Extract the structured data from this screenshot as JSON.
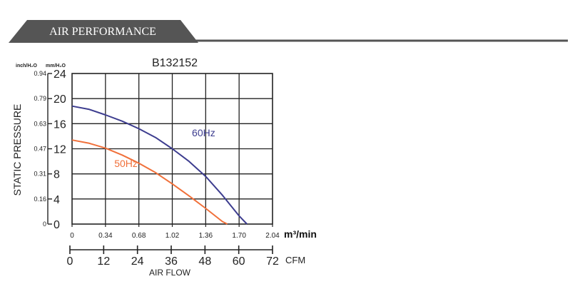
{
  "header": {
    "title": "AIR PERFORMANCE"
  },
  "colors": {
    "header_bg": "#555555",
    "header_line": "#555555",
    "curve_60hz": "#3d3d8f",
    "curve_50hz": "#f0703a",
    "grid": "#222222"
  },
  "chart_data": {
    "type": "line",
    "title": "B132152",
    "ylabel": "STATIC PRESSURE",
    "xlabel": "AIR FLOW",
    "y_unit_left": "inch/H₂O",
    "y_unit_right": "mm/H₂O",
    "x_unit_primary": "m³/min",
    "x_unit_secondary": "CFM",
    "xlim": [
      0,
      2.04
    ],
    "ylim": [
      0,
      24
    ],
    "grid": true,
    "x_ticks": [
      "0",
      "0.34",
      "0.68",
      "1.02",
      "1.36",
      "1.70",
      "2.04"
    ],
    "x_ticks_cfm": [
      "0",
      "12",
      "24",
      "36",
      "48",
      "60",
      "72"
    ],
    "y_ticks_mm": [
      "0",
      "4",
      "8",
      "12",
      "16",
      "20",
      "24"
    ],
    "y_ticks_inch": [
      "0",
      "0.16",
      "0.31",
      "0.47",
      "0.63",
      "0.79",
      "0.94"
    ],
    "series": [
      {
        "name": "60Hz",
        "x": [
          0,
          0.17,
          0.34,
          0.51,
          0.68,
          0.85,
          1.02,
          1.19,
          1.36,
          1.53,
          1.7,
          1.78
        ],
        "values": [
          18.8,
          18.3,
          17.4,
          16.4,
          15.2,
          13.8,
          12.0,
          10.0,
          7.6,
          4.6,
          1.3,
          0
        ]
      },
      {
        "name": "50Hz",
        "x": [
          0,
          0.17,
          0.34,
          0.51,
          0.68,
          0.85,
          1.02,
          1.19,
          1.36,
          1.53,
          1.58
        ],
        "values": [
          13.4,
          12.9,
          12.1,
          11.0,
          9.7,
          8.2,
          6.4,
          4.5,
          2.5,
          0.4,
          0
        ]
      }
    ],
    "annotations": [
      {
        "text": "60Hz",
        "series": "60Hz"
      },
      {
        "text": "50Hz",
        "series": "50Hz"
      }
    ]
  }
}
